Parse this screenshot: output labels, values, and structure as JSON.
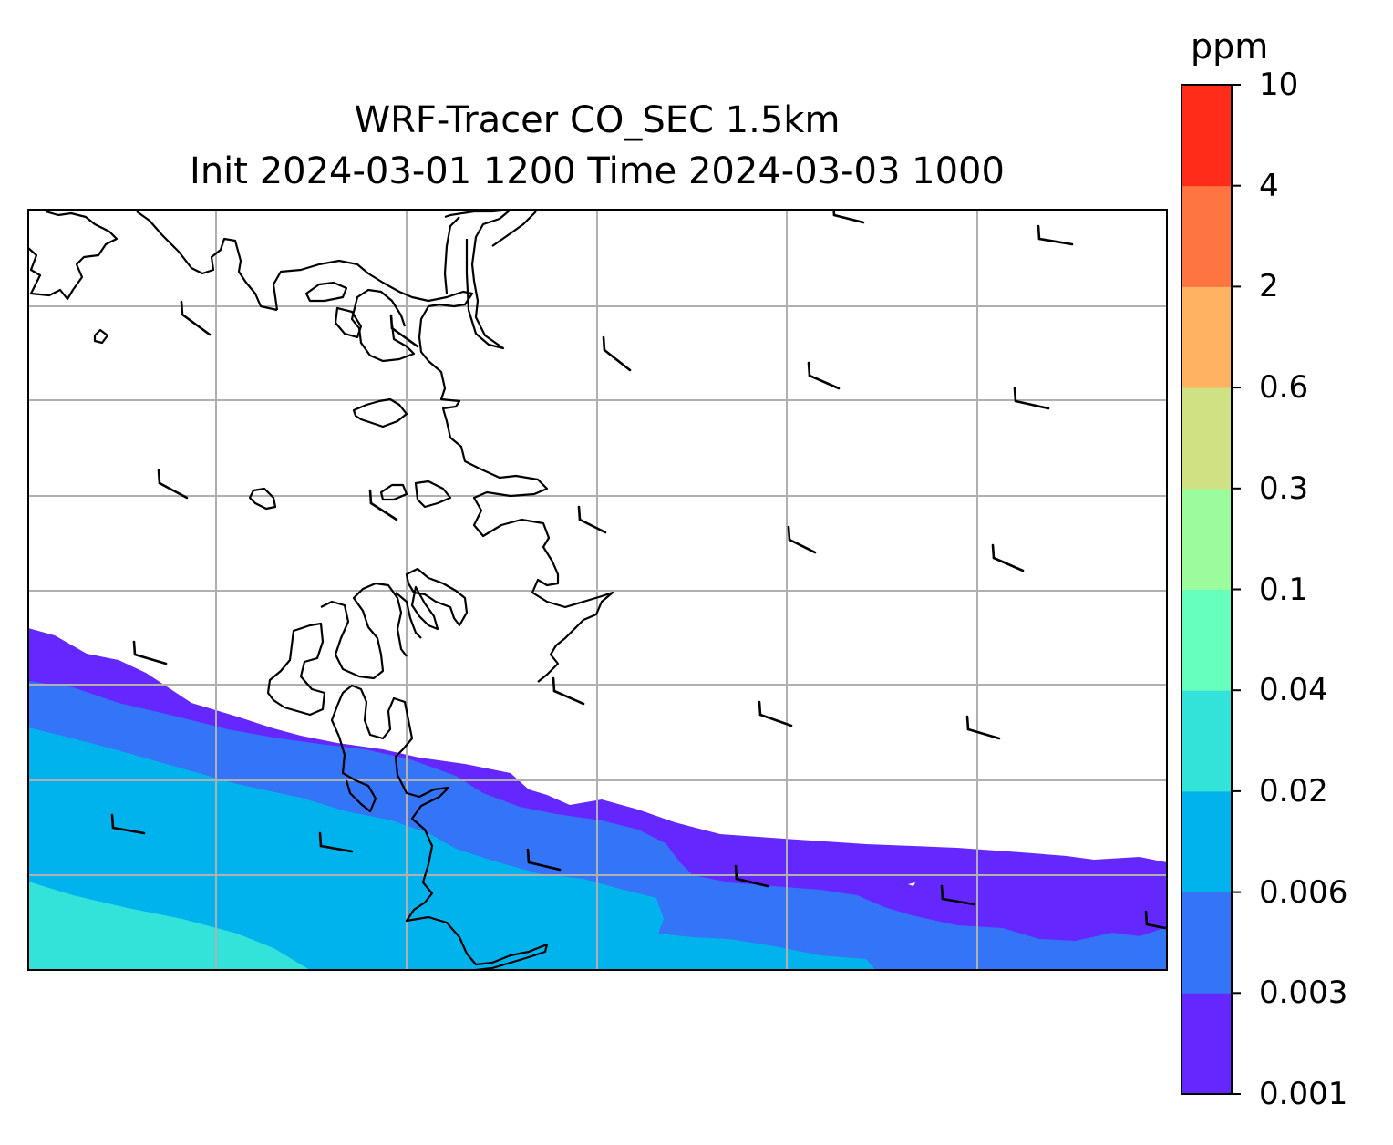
{
  "title": {
    "line1": "WRF-Tracer CO_SEC 1.5km",
    "line2": "Init 2024-03-01 1200 Time 2024-03-03 1000"
  },
  "colorbar": {
    "unit": "ppm",
    "levels": [
      "0.001",
      "0.003",
      "0.006",
      "0.02",
      "0.04",
      "0.1",
      "0.3",
      "0.6",
      "2",
      "4",
      "10"
    ],
    "colors": [
      "#6428ff",
      "#3474f6",
      "#00b3ec",
      "#33e2d9",
      "#67ffbd",
      "#9bfc9e",
      "#d0e184",
      "#ffb262",
      "#ff7541",
      "#ff2c19"
    ]
  },
  "chart_data": {
    "type": "filled-contour map with wind barbs and coastlines",
    "field_unit": "ppm",
    "contour_levels": [
      0.001,
      0.003,
      0.006,
      0.02,
      0.04,
      0.1,
      0.3,
      0.6,
      2,
      4,
      10
    ],
    "filled_bands_visible": [
      "0.001-0.003",
      "0.003-0.006",
      "0.006-0.02",
      "0.02-0.04"
    ],
    "gridlines": true,
    "wind_barbs": "westerly, ~5-10 kt"
  }
}
